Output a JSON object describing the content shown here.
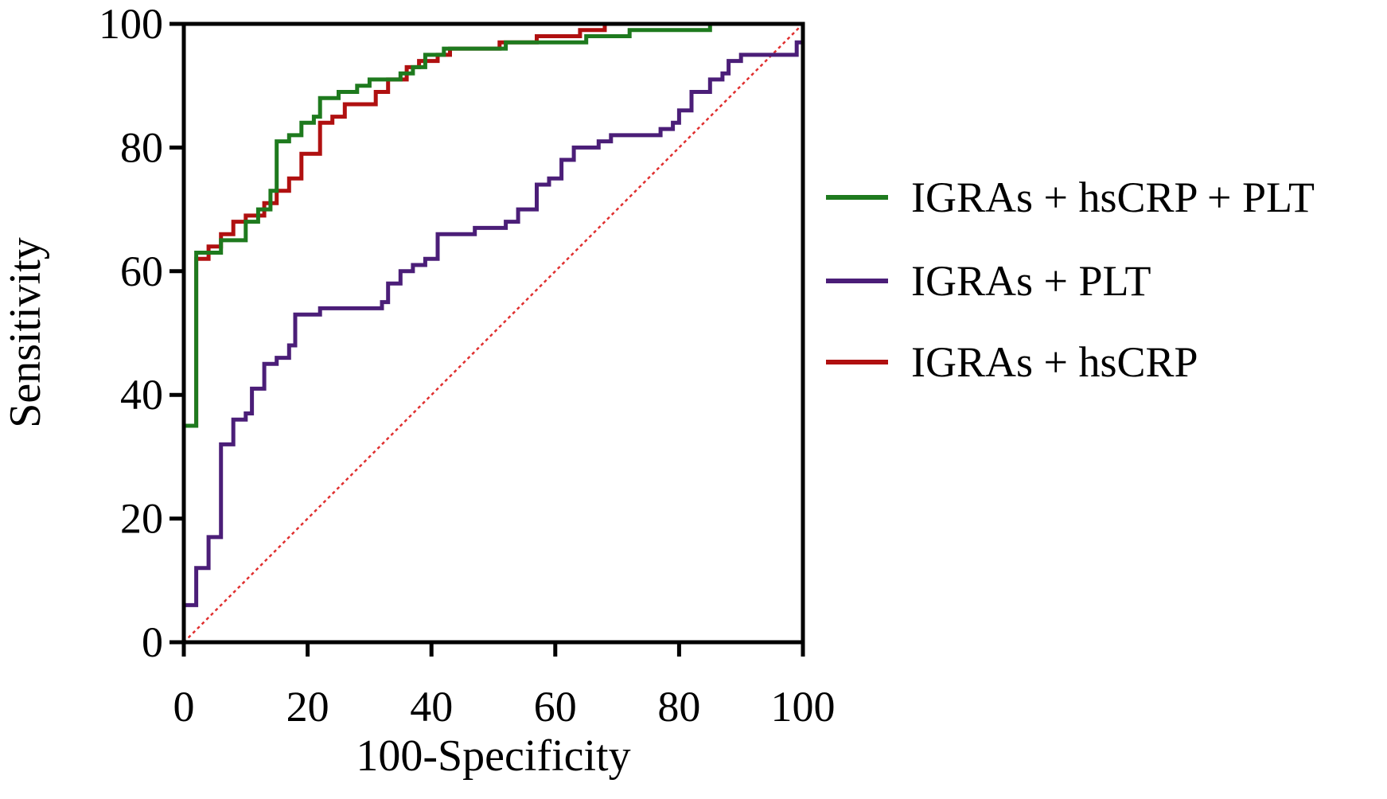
{
  "chart_data": {
    "type": "line",
    "xlabel": "100-Specificity",
    "ylabel": "Sensitivity",
    "xlim": [
      0,
      100
    ],
    "ylim": [
      0,
      100
    ],
    "xticks": [
      0,
      20,
      40,
      60,
      80,
      100
    ],
    "yticks": [
      0,
      20,
      40,
      60,
      80,
      100
    ],
    "legend": "right",
    "series": [
      {
        "name": "IGRAs + hsCRP + PLT",
        "color": "#1e7a1e",
        "x": [
          0,
          0,
          2,
          2,
          6,
          6,
          10,
          10,
          12,
          12,
          14,
          14,
          15,
          15,
          17,
          17,
          19,
          19,
          21,
          21,
          22,
          22,
          25,
          25,
          28,
          28,
          30,
          30,
          35,
          35,
          37,
          37,
          39,
          39,
          42,
          42,
          52,
          52,
          65,
          65,
          72,
          72,
          85,
          85,
          100
        ],
        "values": [
          0,
          35,
          35,
          63,
          63,
          65,
          65,
          68,
          68,
          70,
          70,
          73,
          73,
          81,
          81,
          82,
          82,
          84,
          84,
          85,
          85,
          88,
          88,
          89,
          89,
          90,
          90,
          91,
          91,
          92,
          92,
          93,
          93,
          95,
          95,
          96,
          96,
          97,
          97,
          98,
          98,
          99,
          99,
          100,
          100
        ]
      },
      {
        "name": "IGRAs + PLT",
        "color": "#4b1e78",
        "x": [
          0,
          0,
          2,
          2,
          4,
          4,
          6,
          6,
          8,
          8,
          10,
          10,
          11,
          11,
          13,
          13,
          15,
          15,
          17,
          17,
          18,
          18,
          22,
          22,
          32,
          32,
          33,
          33,
          35,
          35,
          37,
          37,
          39,
          39,
          41,
          41,
          47,
          47,
          52,
          52,
          54,
          54,
          57,
          57,
          59,
          59,
          61,
          61,
          63,
          63,
          67,
          67,
          69,
          69,
          77,
          77,
          79,
          79,
          80,
          80,
          82,
          82,
          85,
          85,
          87,
          87,
          88,
          88,
          90,
          90,
          99,
          99,
          100,
          100
        ],
        "values": [
          0,
          6,
          6,
          12,
          12,
          17,
          17,
          32,
          32,
          36,
          36,
          37,
          37,
          41,
          41,
          45,
          45,
          46,
          46,
          48,
          48,
          53,
          53,
          54,
          54,
          55,
          55,
          58,
          58,
          60,
          60,
          61,
          61,
          62,
          62,
          66,
          66,
          67,
          67,
          68,
          68,
          70,
          70,
          74,
          74,
          75,
          75,
          78,
          78,
          80,
          80,
          81,
          81,
          82,
          82,
          83,
          83,
          84,
          84,
          86,
          86,
          89,
          89,
          91,
          91,
          92,
          92,
          94,
          94,
          95,
          95,
          97,
          97,
          100
        ]
      },
      {
        "name": "IGRAs + hsCRP",
        "color": "#b01010",
        "x": [
          0,
          0,
          2,
          2,
          4,
          4,
          6,
          6,
          8,
          8,
          10,
          10,
          13,
          13,
          15,
          15,
          17,
          17,
          19,
          19,
          22,
          22,
          24,
          24,
          26,
          26,
          31,
          31,
          33,
          33,
          36,
          36,
          38,
          38,
          41,
          41,
          43,
          43,
          51,
          51,
          57,
          57,
          64,
          64,
          68,
          68,
          95
        ],
        "values": [
          0,
          35,
          35,
          62,
          62,
          64,
          64,
          66,
          66,
          68,
          68,
          69,
          69,
          71,
          71,
          73,
          73,
          75,
          75,
          79,
          79,
          84,
          84,
          85,
          85,
          87,
          87,
          89,
          89,
          91,
          91,
          93,
          93,
          94,
          94,
          95,
          95,
          96,
          96,
          97,
          97,
          98,
          98,
          99,
          99,
          100,
          100
        ]
      }
    ]
  }
}
